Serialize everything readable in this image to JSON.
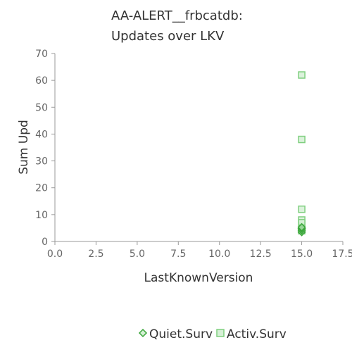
{
  "chart_data": {
    "type": "scatter",
    "title": [
      "AA-ALERT__frbcatdb:",
      "Updates over LKV"
    ],
    "xlabel": "LastKnownVersion",
    "ylabel": "Sum Upd",
    "xlim": [
      0,
      17.5
    ],
    "ylim": [
      0,
      70
    ],
    "xticks": [
      "0.0",
      "2.5",
      "5.0",
      "7.5",
      "10.0",
      "12.5",
      "15.0",
      "17.5"
    ],
    "yticks": [
      "0",
      "10",
      "20",
      "30",
      "40",
      "50",
      "60",
      "70"
    ],
    "grid": false,
    "legend_position": "bottom",
    "series": [
      {
        "name": "Quiet.Surv",
        "marker": "diamond",
        "color": "#3aa63a",
        "points": [
          [
            15,
            3.5
          ],
          [
            15,
            4.2
          ],
          [
            15,
            4.8
          ],
          [
            15,
            5.3
          ]
        ]
      },
      {
        "name": "Activ.Surv",
        "marker": "square",
        "color": "#7fcf7f",
        "points": [
          [
            15,
            62
          ],
          [
            15,
            38
          ],
          [
            15,
            12
          ],
          [
            15,
            8
          ],
          [
            15,
            7
          ],
          [
            15,
            5
          ],
          [
            15,
            4
          ]
        ]
      }
    ]
  }
}
